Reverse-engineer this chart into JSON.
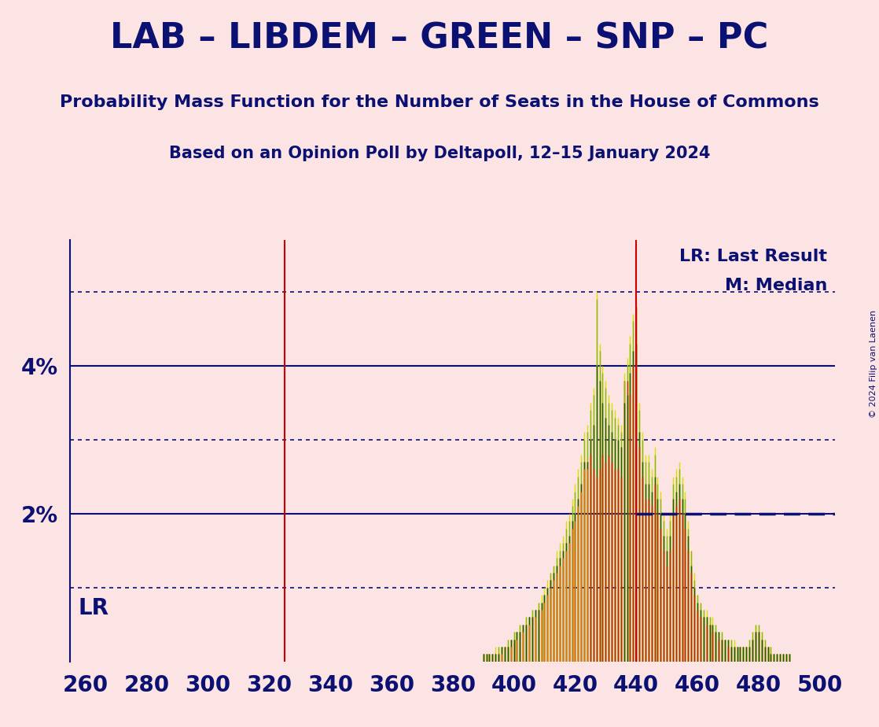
{
  "title": "LAB – LIBDEM – GREEN – SNP – PC",
  "subtitle1": "Probability Mass Function for the Number of Seats in the House of Commons",
  "subtitle2": "Based on an Opinion Poll by Deltapoll, 12–15 January 2024",
  "copyright": "© 2024 Filip van Laenen",
  "background_color": "#fce4e4",
  "title_color": "#0a1172",
  "axis_color": "#0a1172",
  "lr_line_x": 325,
  "median_line_x": 440,
  "lr_label": "LR",
  "lr_legend": "LR: Last Result",
  "median_legend": "M: Median",
  "xmin": 255,
  "xmax": 505,
  "ymin": 0,
  "ymax": 0.057,
  "xticks": [
    260,
    280,
    300,
    320,
    340,
    360,
    380,
    400,
    420,
    440,
    460,
    480,
    500
  ],
  "ytick_solid": [
    0.02,
    0.04
  ],
  "ytick_dotted": [
    0.01,
    0.03,
    0.05
  ],
  "bar_colors": [
    "#cc2200",
    "#ee7700",
    "#dddd00",
    "#88bb00",
    "#116600"
  ],
  "bar_data": {
    "390": [
      0.001,
      0.001,
      0.001,
      0.001,
      0.001
    ],
    "391": [
      0.001,
      0.001,
      0.001,
      0.001,
      0.001
    ],
    "392": [
      0.001,
      0.001,
      0.001,
      0.001,
      0.001
    ],
    "393": [
      0.001,
      0.001,
      0.001,
      0.001,
      0.001
    ],
    "394": [
      0.001,
      0.001,
      0.002,
      0.001,
      0.001
    ],
    "395": [
      0.001,
      0.001,
      0.002,
      0.002,
      0.001
    ],
    "396": [
      0.002,
      0.001,
      0.002,
      0.002,
      0.002
    ],
    "397": [
      0.002,
      0.002,
      0.002,
      0.002,
      0.002
    ],
    "398": [
      0.002,
      0.002,
      0.003,
      0.003,
      0.002
    ],
    "399": [
      0.003,
      0.002,
      0.003,
      0.003,
      0.003
    ],
    "400": [
      0.003,
      0.003,
      0.004,
      0.004,
      0.003
    ],
    "401": [
      0.004,
      0.003,
      0.004,
      0.004,
      0.004
    ],
    "402": [
      0.004,
      0.004,
      0.005,
      0.005,
      0.004
    ],
    "403": [
      0.005,
      0.004,
      0.005,
      0.005,
      0.005
    ],
    "404": [
      0.005,
      0.005,
      0.006,
      0.006,
      0.005
    ],
    "405": [
      0.006,
      0.005,
      0.006,
      0.006,
      0.006
    ],
    "406": [
      0.006,
      0.006,
      0.007,
      0.007,
      0.006
    ],
    "407": [
      0.007,
      0.006,
      0.007,
      0.007,
      0.007
    ],
    "408": [
      0.007,
      0.007,
      0.008,
      0.008,
      0.007
    ],
    "409": [
      0.008,
      0.007,
      0.009,
      0.008,
      0.008
    ],
    "410": [
      0.009,
      0.008,
      0.01,
      0.009,
      0.009
    ],
    "411": [
      0.01,
      0.009,
      0.011,
      0.01,
      0.01
    ],
    "412": [
      0.011,
      0.01,
      0.012,
      0.012,
      0.011
    ],
    "413": [
      0.012,
      0.011,
      0.013,
      0.013,
      0.012
    ],
    "414": [
      0.013,
      0.012,
      0.015,
      0.014,
      0.013
    ],
    "415": [
      0.014,
      0.013,
      0.016,
      0.015,
      0.014
    ],
    "416": [
      0.015,
      0.014,
      0.017,
      0.016,
      0.015
    ],
    "417": [
      0.016,
      0.015,
      0.019,
      0.018,
      0.016
    ],
    "418": [
      0.017,
      0.016,
      0.02,
      0.019,
      0.017
    ],
    "419": [
      0.019,
      0.018,
      0.022,
      0.021,
      0.019
    ],
    "420": [
      0.02,
      0.019,
      0.024,
      0.023,
      0.02
    ],
    "421": [
      0.022,
      0.021,
      0.026,
      0.025,
      0.022
    ],
    "422": [
      0.024,
      0.023,
      0.028,
      0.027,
      0.024
    ],
    "423": [
      0.027,
      0.026,
      0.031,
      0.03,
      0.027
    ],
    "424": [
      0.027,
      0.026,
      0.032,
      0.031,
      0.027
    ],
    "425": [
      0.028,
      0.03,
      0.035,
      0.034,
      0.03
    ],
    "426": [
      0.026,
      0.032,
      0.037,
      0.036,
      0.032
    ],
    "427": [
      0.025,
      0.04,
      0.05,
      0.049,
      0.04
    ],
    "428": [
      0.026,
      0.038,
      0.043,
      0.042,
      0.038
    ],
    "429": [
      0.028,
      0.035,
      0.04,
      0.039,
      0.035
    ],
    "430": [
      0.027,
      0.033,
      0.038,
      0.037,
      0.033
    ],
    "431": [
      0.028,
      0.032,
      0.036,
      0.035,
      0.032
    ],
    "432": [
      0.027,
      0.031,
      0.035,
      0.034,
      0.031
    ],
    "433": [
      0.026,
      0.03,
      0.034,
      0.033,
      0.03
    ],
    "434": [
      0.026,
      0.03,
      0.033,
      0.032,
      0.03
    ],
    "435": [
      0.025,
      0.029,
      0.032,
      0.031,
      0.029
    ],
    "436": [
      0.038,
      0.035,
      0.039,
      0.038,
      0.035
    ],
    "437": [
      0.038,
      0.036,
      0.041,
      0.04,
      0.036
    ],
    "438": [
      0.036,
      0.039,
      0.044,
      0.043,
      0.039
    ],
    "439": [
      0.04,
      0.042,
      0.047,
      0.046,
      0.042
    ],
    "440": [
      0.048,
      0.043,
      0.049,
      0.048,
      0.043
    ],
    "441": [
      0.029,
      0.031,
      0.035,
      0.034,
      0.031
    ],
    "442": [
      0.025,
      0.027,
      0.031,
      0.03,
      0.027
    ],
    "443": [
      0.022,
      0.024,
      0.028,
      0.027,
      0.024
    ],
    "444": [
      0.022,
      0.024,
      0.028,
      0.027,
      0.024
    ],
    "445": [
      0.021,
      0.023,
      0.026,
      0.025,
      0.023
    ],
    "446": [
      0.024,
      0.025,
      0.029,
      0.028,
      0.025
    ],
    "447": [
      0.02,
      0.022,
      0.025,
      0.024,
      0.022
    ],
    "448": [
      0.018,
      0.02,
      0.023,
      0.022,
      0.02
    ],
    "449": [
      0.015,
      0.017,
      0.02,
      0.019,
      0.017
    ],
    "450": [
      0.013,
      0.015,
      0.018,
      0.017,
      0.015
    ],
    "451": [
      0.015,
      0.017,
      0.02,
      0.019,
      0.017
    ],
    "452": [
      0.02,
      0.022,
      0.025,
      0.024,
      0.022
    ],
    "453": [
      0.021,
      0.023,
      0.026,
      0.025,
      0.023
    ],
    "454": [
      0.022,
      0.024,
      0.027,
      0.026,
      0.024
    ],
    "455": [
      0.02,
      0.022,
      0.025,
      0.024,
      0.022
    ],
    "456": [
      0.018,
      0.02,
      0.023,
      0.022,
      0.02
    ],
    "457": [
      0.015,
      0.017,
      0.019,
      0.018,
      0.017
    ],
    "458": [
      0.012,
      0.013,
      0.015,
      0.015,
      0.013
    ],
    "459": [
      0.009,
      0.01,
      0.012,
      0.011,
      0.01
    ],
    "460": [
      0.007,
      0.008,
      0.009,
      0.009,
      0.008
    ],
    "461": [
      0.006,
      0.007,
      0.008,
      0.008,
      0.007
    ],
    "462": [
      0.006,
      0.006,
      0.007,
      0.007,
      0.006
    ],
    "463": [
      0.005,
      0.006,
      0.007,
      0.006,
      0.006
    ],
    "464": [
      0.005,
      0.005,
      0.006,
      0.006,
      0.005
    ],
    "465": [
      0.004,
      0.005,
      0.006,
      0.005,
      0.005
    ],
    "466": [
      0.004,
      0.004,
      0.005,
      0.005,
      0.004
    ],
    "467": [
      0.003,
      0.004,
      0.004,
      0.004,
      0.004
    ],
    "468": [
      0.003,
      0.003,
      0.004,
      0.004,
      0.003
    ],
    "469": [
      0.003,
      0.003,
      0.003,
      0.003,
      0.003
    ],
    "470": [
      0.002,
      0.003,
      0.003,
      0.003,
      0.003
    ],
    "471": [
      0.002,
      0.002,
      0.003,
      0.003,
      0.002
    ],
    "472": [
      0.002,
      0.002,
      0.003,
      0.002,
      0.002
    ],
    "473": [
      0.002,
      0.002,
      0.002,
      0.002,
      0.002
    ],
    "474": [
      0.002,
      0.002,
      0.002,
      0.002,
      0.002
    ],
    "475": [
      0.002,
      0.002,
      0.002,
      0.002,
      0.002
    ],
    "476": [
      0.002,
      0.002,
      0.002,
      0.002,
      0.002
    ],
    "477": [
      0.002,
      0.002,
      0.003,
      0.003,
      0.002
    ],
    "478": [
      0.003,
      0.003,
      0.004,
      0.004,
      0.003
    ],
    "479": [
      0.004,
      0.004,
      0.005,
      0.005,
      0.004
    ],
    "480": [
      0.004,
      0.004,
      0.005,
      0.005,
      0.004
    ],
    "481": [
      0.003,
      0.003,
      0.004,
      0.004,
      0.003
    ],
    "482": [
      0.002,
      0.002,
      0.003,
      0.003,
      0.002
    ],
    "483": [
      0.002,
      0.002,
      0.002,
      0.002,
      0.002
    ],
    "484": [
      0.001,
      0.001,
      0.002,
      0.002,
      0.001
    ],
    "485": [
      0.001,
      0.001,
      0.001,
      0.001,
      0.001
    ],
    "486": [
      0.001,
      0.001,
      0.001,
      0.001,
      0.001
    ],
    "487": [
      0.001,
      0.001,
      0.001,
      0.001,
      0.001
    ],
    "488": [
      0.001,
      0.001,
      0.001,
      0.001,
      0.001
    ],
    "489": [
      0.001,
      0.001,
      0.001,
      0.001,
      0.001
    ],
    "490": [
      0.001,
      0.001,
      0.001,
      0.001,
      0.001
    ]
  }
}
